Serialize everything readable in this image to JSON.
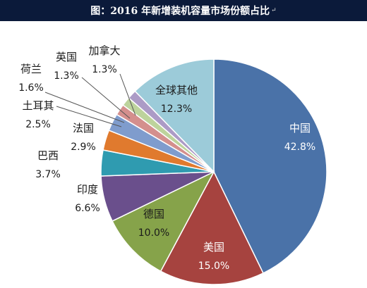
{
  "title": "图：2016 年新增装机容量市场份额占比",
  "title_mark": "↵",
  "chart_data": {
    "type": "pie",
    "title": "图：2016 年新增装机容量市场份额占比",
    "start_angle_deg": 0,
    "direction": "clockwise",
    "slices": [
      {
        "label": "中国",
        "value": 42.8,
        "value_label": "42.8%",
        "color": "#4a72a8",
        "text_color": "#ffffff"
      },
      {
        "label": "美国",
        "value": 15.0,
        "value_label": "15.0%",
        "color": "#a6433f",
        "text_color": "#ffffff"
      },
      {
        "label": "德国",
        "value": 10.0,
        "value_label": "10.0%",
        "color": "#86a34a",
        "text_color": "#1a1a1a"
      },
      {
        "label": "印度",
        "value": 6.6,
        "value_label": "6.6%",
        "color": "#6a4f8c",
        "text_color": "#1a1a1a"
      },
      {
        "label": "巴西",
        "value": 3.7,
        "value_label": "3.7%",
        "color": "#2f9bb0",
        "text_color": "#1a1a1a"
      },
      {
        "label": "法国",
        "value": 2.9,
        "value_label": "2.9%",
        "color": "#e07a2e",
        "text_color": "#1a1a1a"
      },
      {
        "label": "土耳其",
        "value": 2.5,
        "value_label": "2.5%",
        "color": "#7f9ccd",
        "text_color": "#1a1a1a"
      },
      {
        "label": "荷兰",
        "value": 1.6,
        "value_label": "1.6%",
        "color": "#d48f8d",
        "text_color": "#1a1a1a"
      },
      {
        "label": "英国",
        "value": 1.3,
        "value_label": "1.3%",
        "color": "#bdd39c",
        "text_color": "#1a1a1a"
      },
      {
        "label": "加拿大",
        "value": 1.3,
        "value_label": "1.3%",
        "color": "#ac9bc6",
        "text_color": "#1a1a1a"
      },
      {
        "label": "全球其他",
        "value": 12.3,
        "value_label": "12.3%",
        "color": "#9ccbd9",
        "text_color": "#1a1a1a"
      }
    ]
  }
}
